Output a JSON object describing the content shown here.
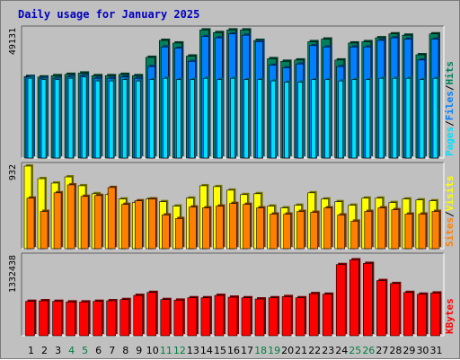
{
  "title": "Daily usage for January 2025",
  "colors": {
    "background": "#c0c0c0",
    "hits": "#00805c",
    "files": "#0080ff",
    "pages": "#00e0ff",
    "visits": "#ffff00",
    "sites": "#ff8000",
    "kbytes": "#ff0000",
    "weekday_label": "#000000",
    "weekend_label": "#008040"
  },
  "chart_data": [
    {
      "type": "bar",
      "panel": "hits-files-pages",
      "ymax_label": "49131",
      "ylim": [
        0,
        49131
      ],
      "legend": [
        "Pages",
        "/",
        "Files",
        "/",
        "Hits"
      ],
      "categories": [
        "1",
        "2",
        "3",
        "4",
        "5",
        "6",
        "7",
        "8",
        "9",
        "10",
        "11",
        "12",
        "13",
        "14",
        "15",
        "16",
        "17",
        "18",
        "19",
        "20",
        "21",
        "22",
        "23",
        "24",
        "25",
        "26",
        "27",
        "28",
        "29",
        "30",
        "31"
      ],
      "weekend_days": [
        "4",
        "5",
        "11",
        "12",
        "18",
        "19",
        "25",
        "26"
      ],
      "series": [
        {
          "name": "Hits",
          "values": [
            31200,
            31000,
            31500,
            32000,
            32500,
            31500,
            31500,
            32000,
            31500,
            38500,
            45000,
            44000,
            39000,
            49000,
            48000,
            49000,
            49000,
            45000,
            38000,
            37000,
            37500,
            44500,
            45500,
            37500,
            44000,
            44500,
            46000,
            47500,
            47000,
            39500,
            47500
          ]
        },
        {
          "name": "Files",
          "values": [
            31000,
            30500,
            30500,
            31000,
            31500,
            30500,
            30500,
            31000,
            30500,
            35000,
            42500,
            42000,
            37000,
            46500,
            46000,
            47500,
            47000,
            44500,
            35500,
            34500,
            36000,
            43000,
            42500,
            35000,
            42500,
            42500,
            45000,
            46000,
            45500,
            37500,
            45500
          ]
        },
        {
          "name": "Pages",
          "values": [
            30500,
            30000,
            30000,
            30500,
            31000,
            29500,
            29500,
            30000,
            29500,
            30000,
            30500,
            30000,
            30000,
            30500,
            30000,
            30500,
            30000,
            30000,
            29500,
            29000,
            29000,
            30000,
            30000,
            29500,
            30000,
            30000,
            30500,
            30500,
            30500,
            30000,
            30500
          ]
        }
      ]
    },
    {
      "type": "bar",
      "panel": "visits-sites",
      "ymax_label": "932",
      "ylim": [
        0,
        932
      ],
      "legend": [
        "Sites",
        "/",
        "Visits"
      ],
      "categories": [
        "1",
        "2",
        "3",
        "4",
        "5",
        "6",
        "7",
        "8",
        "9",
        "10",
        "11",
        "12",
        "13",
        "14",
        "15",
        "16",
        "17",
        "18",
        "19",
        "20",
        "21",
        "22",
        "23",
        "24",
        "25",
        "26",
        "27",
        "28",
        "29",
        "30",
        "31"
      ],
      "series": [
        {
          "name": "Visits",
          "values": [
            932,
            790,
            740,
            810,
            710,
            620,
            610,
            560,
            520,
            560,
            530,
            480,
            570,
            710,
            700,
            660,
            610,
            620,
            480,
            460,
            490,
            630,
            560,
            530,
            490,
            570,
            570,
            520,
            560,
            550,
            540
          ]
        },
        {
          "name": "Sites",
          "values": [
            570,
            420,
            630,
            720,
            590,
            600,
            690,
            500,
            540,
            560,
            380,
            340,
            470,
            460,
            480,
            510,
            500,
            460,
            390,
            390,
            420,
            410,
            460,
            380,
            310,
            420,
            460,
            440,
            390,
            390,
            420
          ]
        }
      ]
    },
    {
      "type": "bar",
      "panel": "kbytes",
      "ymax_label": "1332438",
      "ylim": [
        0,
        1332438
      ],
      "legend": [
        "KBytes"
      ],
      "categories": [
        "1",
        "2",
        "3",
        "4",
        "5",
        "6",
        "7",
        "8",
        "9",
        "10",
        "11",
        "12",
        "13",
        "14",
        "15",
        "16",
        "17",
        "18",
        "19",
        "20",
        "21",
        "22",
        "23",
        "24",
        "25",
        "26",
        "27",
        "28",
        "29",
        "30",
        "31"
      ],
      "series": [
        {
          "name": "KBytes",
          "values": [
            580000,
            590000,
            580000,
            570000,
            570000,
            580000,
            590000,
            610000,
            680000,
            730000,
            610000,
            600000,
            640000,
            640000,
            680000,
            650000,
            640000,
            620000,
            640000,
            660000,
            640000,
            710000,
            700000,
            1200000,
            1280000,
            1220000,
            930000,
            880000,
            730000,
            700000,
            720000
          ]
        }
      ]
    }
  ]
}
